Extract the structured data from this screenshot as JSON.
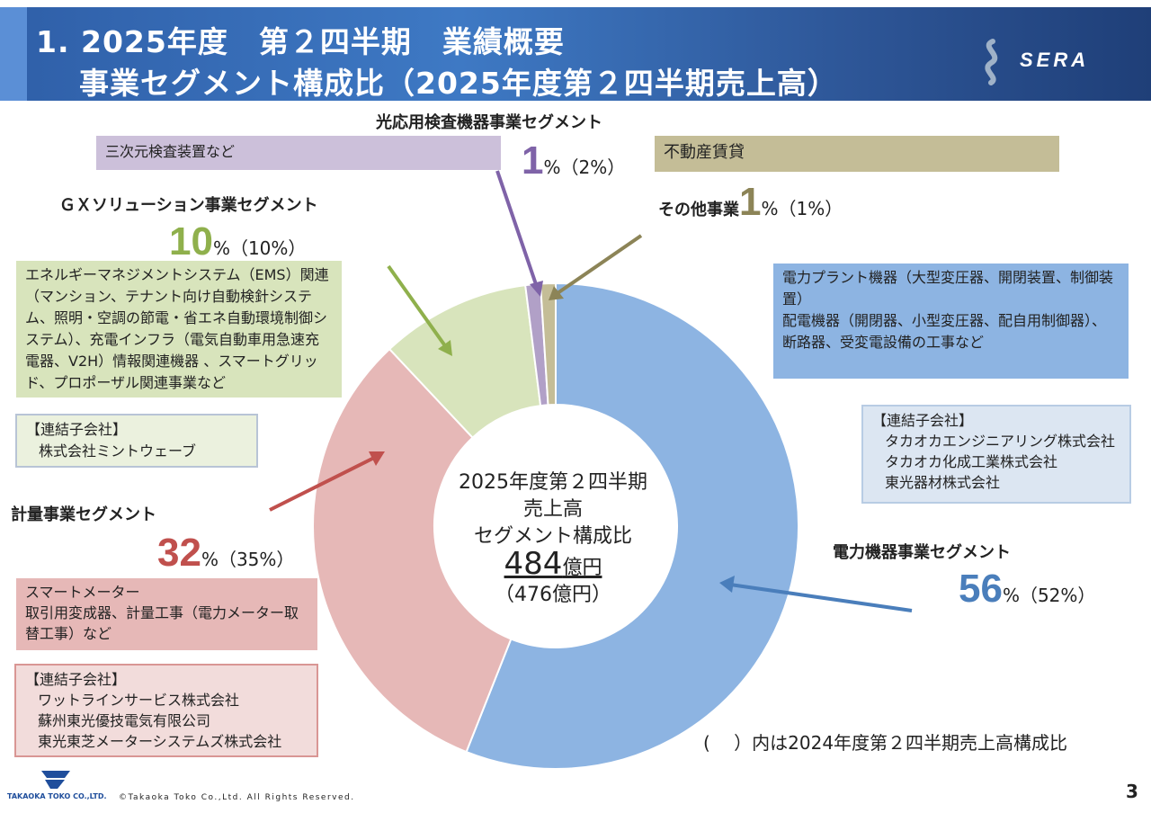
{
  "header": {
    "title_line1": "1. 2025年度　第２四半期　業績概要",
    "title_line2": "事業セグメント構成比（2025年度第２四半期売上高）",
    "logo_text": "SERA"
  },
  "segments": {
    "optical": {
      "title": "光応用検査機器事業セグメント",
      "pct": "1",
      "pct_suffix": "%（2%）",
      "desc": "三次元検査装置など"
    },
    "other": {
      "title": "その他事業",
      "pct": "1",
      "pct_suffix": "%（1%）",
      "desc": "不動産賃貸"
    },
    "gx": {
      "title": "ＧＸソリューション事業セグメント",
      "pct": "10",
      "pct_suffix": "%（10%）",
      "desc": "エネルギーマネジメントシステム（EMS）関連（マンション、テナント向け自動検針システム、照明・空調の節電・省エネ自動環境制御システム）、充電インフラ（電気自動車用急速充電器、V2H）情報関連機器 、スマートグリッド、プロポーザル関連事業など",
      "subsidiary_label": "【連結子会社】",
      "subsidiaries": [
        "株式会社ミントウェーブ"
      ]
    },
    "metering": {
      "title": "計量事業セグメント",
      "pct": "32",
      "pct_suffix": "%（35%）",
      "desc_lines": [
        "スマートメーター",
        "取引用変成器、計量工事（電力メーター取替工事）など"
      ],
      "subsidiary_label": "【連結子会社】",
      "subsidiaries": [
        "ワットラインサービス株式会社",
        "蘇州東光優技電気有限公司",
        "東光東芝メーターシステムズ株式会社"
      ]
    },
    "power": {
      "title": "電力機器事業セグメント",
      "pct": "56",
      "pct_suffix": "%（52%）",
      "desc_lines": [
        "電力プラント機器（大型変圧器、開閉装置、制御装置）",
        "配電機器（開閉器、小型変圧器、配自用制御器）、",
        "断路器、受変電設備の工事など"
      ],
      "subsidiary_label": "【連結子会社】",
      "subsidiaries": [
        "タカオカエンジニアリング株式会社",
        "タカオカ化成工業株式会社",
        "東光器材株式会社"
      ]
    }
  },
  "center": {
    "line1": "2025年度第２四半期",
    "line2": "売上高",
    "line3": "セグメント構成比",
    "amount": "484",
    "amount_unit": "億円",
    "prev_amount": "（476億円）"
  },
  "chart_data": {
    "type": "pie",
    "variant": "donut",
    "title": "2025年度第２四半期 売上高 セグメント構成比",
    "categories": [
      "電力機器事業セグメント",
      "計量事業セグメント",
      "ＧＸソリューション事業セグメント",
      "光応用検査機器事業セグメント",
      "その他事業"
    ],
    "values": [
      56,
      32,
      10,
      1,
      1
    ],
    "previous_values": [
      52,
      35,
      10,
      2,
      1
    ],
    "colors": [
      "#8db4e2",
      "#e6b8b7",
      "#d8e4bc",
      "#b1a0c7",
      "#c4bd97"
    ],
    "total": "484億円"
  },
  "footer": {
    "note": "(　 ）内は2024年度第２四半期売上高構成比",
    "page_number": "3",
    "copyright": "©Takaoka Toko Co.,Ltd. All Rights Reserved.",
    "company": "TAKAOKA TOKO CO.,LTD."
  },
  "colors": {
    "power": "#4a7ebb",
    "metering": "#c0504d",
    "gx": "#8fb04c",
    "optical": "#7f63a8",
    "other": "#8c8457"
  }
}
